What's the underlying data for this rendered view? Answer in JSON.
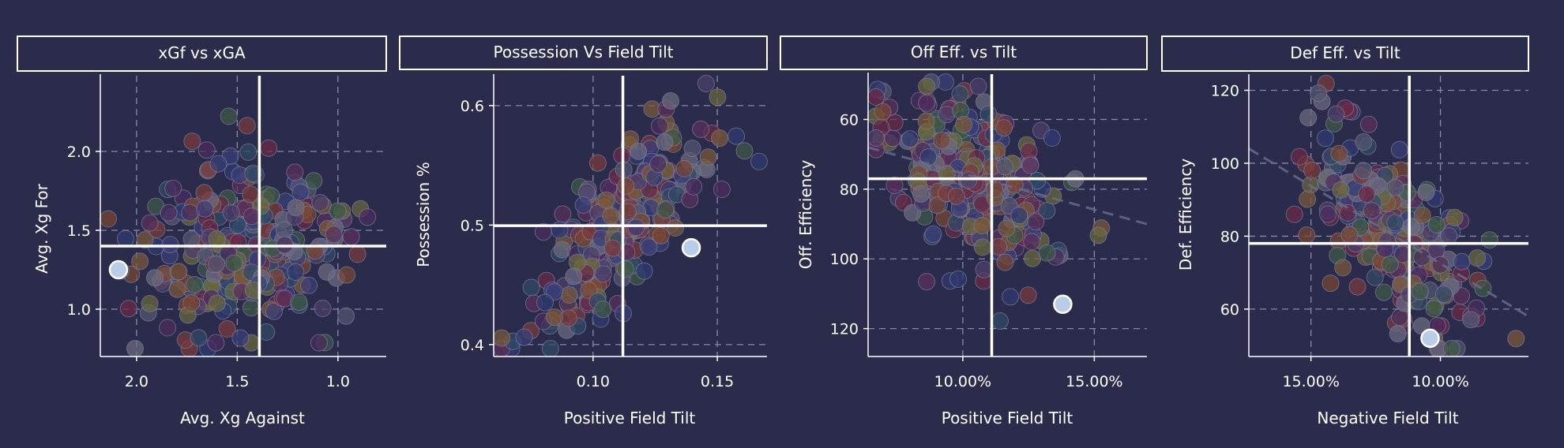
{
  "chart_data": [
    {
      "type": "scatter",
      "title": "xGf vs xGA",
      "xlabel": "Avg. Xg Against",
      "ylabel": "Avg. Xg For",
      "xlim": [
        2.18,
        0.76
      ],
      "ylim": [
        0.7,
        2.48
      ],
      "x_inverted": true,
      "xticks": [
        {
          "value": 2.0,
          "label": "2.0"
        },
        {
          "value": 1.5,
          "label": "1.5"
        },
        {
          "value": 1.0,
          "label": "1.0"
        }
      ],
      "yticks": [
        {
          "value": 1.0,
          "label": "1.0"
        },
        {
          "value": 1.5,
          "label": "1.5"
        },
        {
          "value": 2.0,
          "label": "2.0"
        }
      ],
      "reference_lines": {
        "x": 1.39,
        "y": 1.4
      },
      "highlight_point": {
        "x": 2.09,
        "y": 1.25
      },
      "cloud": {
        "cx": 1.45,
        "cy": 1.38,
        "sx": 0.24,
        "sy": 0.27,
        "corr": 0.0,
        "n": 260,
        "seed": 11
      },
      "trend_line": null
    },
    {
      "type": "scatter",
      "title": "Possession Vs Field Tilt",
      "xlabel": "Positive Field Tilt",
      "ylabel": "Possession %",
      "xlim": [
        0.06,
        0.17
      ],
      "ylim": [
        0.39,
        0.625
      ],
      "x_inverted": false,
      "xticks": [
        {
          "value": 0.1,
          "label": "0.10"
        },
        {
          "value": 0.15,
          "label": "0.15"
        }
      ],
      "yticks": [
        {
          "value": 0.4,
          "label": "0.4"
        },
        {
          "value": 0.5,
          "label": "0.5"
        },
        {
          "value": 0.6,
          "label": "0.6"
        }
      ],
      "reference_lines": {
        "x": 0.112,
        "y": 0.4995
      },
      "highlight_point": {
        "x": 0.1395,
        "y": 0.481
      },
      "cloud": {
        "cx": 0.111,
        "cy": 0.5,
        "sx": 0.017,
        "sy": 0.04,
        "corr": 0.72,
        "n": 260,
        "seed": 23
      },
      "trend_line": null
    },
    {
      "type": "scatter",
      "title": "Off Eff. vs Tilt",
      "xlabel": "Positive Field Tilt",
      "ylabel": "Off. Efficiency",
      "xlim": [
        0.064,
        0.17
      ],
      "ylim": [
        128,
        47
      ],
      "y_inverted": true,
      "xticks": [
        {
          "value": 0.1,
          "label": "10.00%"
        },
        {
          "value": 0.15,
          "label": "15.00%"
        }
      ],
      "yticks": [
        {
          "value": 60,
          "label": "60"
        },
        {
          "value": 80,
          "label": "80"
        },
        {
          "value": 100,
          "label": "100"
        },
        {
          "value": 120,
          "label": "120"
        }
      ],
      "reference_lines": {
        "x": 0.111,
        "y": 77
      },
      "highlight_point": {
        "x": 0.138,
        "y": 113
      },
      "cloud": {
        "cx": 0.105,
        "cy": 78,
        "sx": 0.017,
        "sy": 14,
        "corr": 0.45,
        "n": 260,
        "seed": 37
      },
      "trend_line": {
        "x1": 0.064,
        "y1": 68,
        "x2": 0.17,
        "y2": 90
      }
    },
    {
      "type": "scatter",
      "title": "Def Eff. vs Tilt",
      "xlabel": "Negative Field Tilt",
      "ylabel": "Def. Efficiency",
      "xlim": [
        0.174,
        0.066
      ],
      "ylim": [
        47,
        124
      ],
      "x_inverted": true,
      "xticks": [
        {
          "value": 0.15,
          "label": "15.00%"
        },
        {
          "value": 0.1,
          "label": "10.00%"
        }
      ],
      "yticks": [
        {
          "value": 60,
          "label": "60"
        },
        {
          "value": 80,
          "label": "80"
        },
        {
          "value": 100,
          "label": "100"
        },
        {
          "value": 120,
          "label": "120"
        }
      ],
      "reference_lines": {
        "x": 0.112,
        "y": 78
      },
      "highlight_point": {
        "x": 0.104,
        "y": 52
      },
      "cloud": {
        "cx": 0.118,
        "cy": 80,
        "sx": 0.016,
        "sy": 14,
        "corr": 0.62,
        "n": 260,
        "seed": 53
      },
      "trend_line": {
        "x1": 0.174,
        "y1": 104,
        "x2": 0.066,
        "y2": 58
      }
    }
  ],
  "colors": {
    "background": "#2b2b4b",
    "text": "#ffffff",
    "grid": "#8a8aa5",
    "highlight": "#b9cde6",
    "trend": "#6d6d8c",
    "dots": [
      "#6b2a45",
      "#3a3f77",
      "#7a3a3a",
      "#4d3f6a",
      "#555770",
      "#6a6a3f",
      "#2f4a66",
      "#7a4632",
      "#3d5a45",
      "#5a2f5a",
      "#2e3a70",
      "#7a5a3a",
      "#4a2d5e",
      "#6b6b80"
    ]
  }
}
